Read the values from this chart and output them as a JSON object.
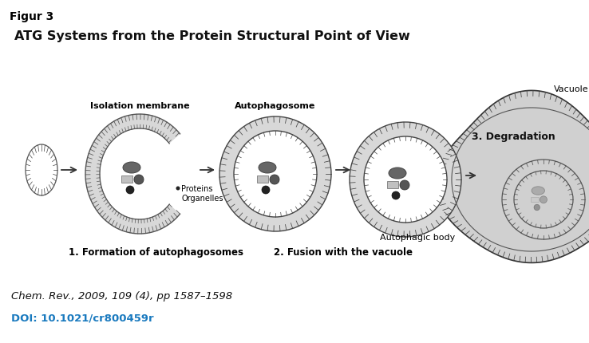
{
  "title": "ATG Systems from the Protein Structural Point of View",
  "figure_label": "Figur 3",
  "citation": "Chem. Rev., 2009, 109 (4), pp 1587–1598",
  "doi": "DOI: 10.1021/cr800459r",
  "doi_color": "#1a7abf",
  "bg_color": "#ffffff",
  "labels": {
    "isolation_membrane": "Isolation membrane",
    "autophagosome": "Autophagosome",
    "step1": "1. Formation of autophagosomes",
    "step2": "2. Fusion with the vacuole",
    "step3": "3. Degradation",
    "vacuole": "Vacuole",
    "autophagic_body": "Autophagic body",
    "proteins": "Proteins\nOrganelles"
  },
  "colors": {
    "stroke": "#444444",
    "tick": "#555555",
    "vacuole_fill": "#d0d0d0",
    "inner_fill": "#ffffff",
    "organelle_dark": "#666666",
    "organelle_mid": "#999999",
    "organelle_rect": "#c0c0c0",
    "arrow": "#333333"
  },
  "figsize": [
    7.38,
    4.3
  ],
  "dpi": 100
}
